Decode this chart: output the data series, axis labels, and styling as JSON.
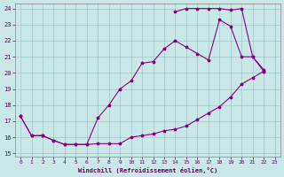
{
  "background_color": "#cbe8e8",
  "grid_color": "#a0c8c8",
  "line_color": "#880088",
  "xlabel": "Windchill (Refroidissement éolien,°C)",
  "xlim_min": -0.5,
  "xlim_max": 23.5,
  "ylim_min": 14.8,
  "ylim_max": 24.3,
  "yticks": [
    15,
    16,
    17,
    18,
    19,
    20,
    21,
    22,
    23,
    24
  ],
  "xticks": [
    0,
    1,
    2,
    3,
    4,
    5,
    6,
    7,
    8,
    9,
    10,
    11,
    12,
    13,
    14,
    15,
    16,
    17,
    18,
    19,
    20,
    21,
    22,
    23
  ],
  "line1_x": [
    0,
    1,
    2,
    3,
    4,
    5,
    6,
    7,
    8,
    9,
    10,
    11,
    12,
    13,
    14,
    15,
    16,
    17,
    18,
    19,
    20,
    21,
    22
  ],
  "line1_y": [
    17.3,
    16.1,
    16.1,
    15.8,
    15.55,
    15.55,
    15.55,
    15.6,
    15.6,
    15.6,
    16.0,
    16.1,
    16.2,
    16.4,
    16.5,
    16.7,
    17.1,
    17.5,
    17.9,
    18.5,
    19.3,
    19.7,
    20.1
  ],
  "line2_x": [
    0,
    1,
    2,
    3,
    4,
    5,
    6,
    7,
    8,
    9,
    10,
    11,
    12,
    13,
    14,
    15,
    16,
    17,
    18,
    19,
    20,
    21,
    22
  ],
  "line2_y": [
    17.3,
    16.1,
    16.1,
    15.8,
    15.55,
    15.55,
    15.55,
    17.2,
    18.0,
    19.0,
    19.5,
    20.6,
    20.7,
    21.5,
    22.0,
    21.6,
    21.2,
    20.8,
    23.3,
    22.9,
    21.0,
    21.0,
    20.1
  ],
  "line3_x": [
    14,
    15,
    16,
    17,
    18,
    19,
    20,
    21,
    22
  ],
  "line3_y": [
    23.8,
    24.0,
    24.0,
    24.0,
    24.0,
    23.9,
    24.0,
    21.0,
    20.2
  ]
}
